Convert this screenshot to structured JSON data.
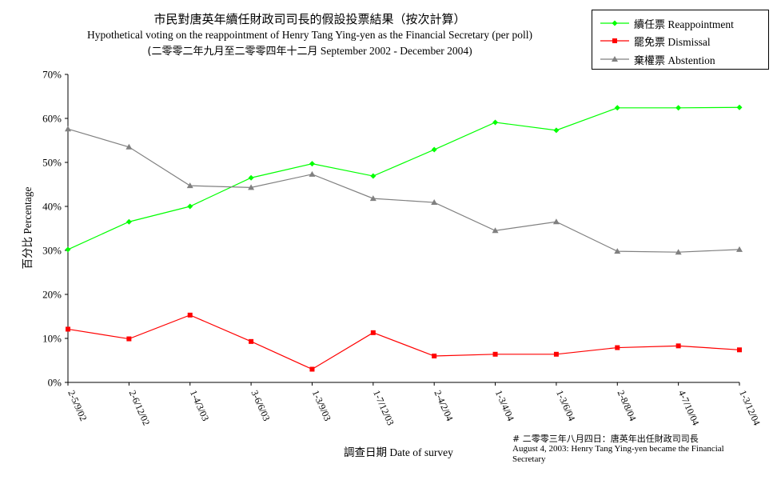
{
  "header": {
    "title_zh": "市民對唐英年續任財政司司長的假設投票結果（按次計算）",
    "title_en": "Hypothetical voting on the reappointment of Henry Tang Ying-yen as the Financial Secretary (per poll)",
    "period_zh": "(二零零二年九月至二零零四年十二月",
    "period_en": "September 2002 - December 2004)"
  },
  "note": {
    "line_zh": "# 二零零三年八月四日：唐英年出任財政司司長",
    "line_en": "August 4, 2003: Henry Tang Ying-yen became the Financial Secretary"
  },
  "chart_data": {
    "type": "line",
    "categories": [
      "2-5/9/02",
      "2-6/12/02",
      "1-4/3/03",
      "3-6/6/03",
      "1-3/9/03",
      "1-7/12/03",
      "2-4/2/04",
      "1-3/4/04",
      "1-3/6/04",
      "2-8/8/04",
      "4-7/10/04",
      "1-3/12/04"
    ],
    "series": [
      {
        "name": "續任票 Reappointment",
        "name_zh": "續任票",
        "name_en": "Reappointment",
        "color": "#00ff00",
        "marker": "diamond",
        "values": [
          30.2,
          36.5,
          40.0,
          46.5,
          49.7,
          46.9,
          52.9,
          59.1,
          57.3,
          62.4,
          62.4,
          62.5
        ]
      },
      {
        "name": "罷免票 Dismissal",
        "name_zh": "罷免票",
        "name_en": "Dismissal",
        "color": "#ff0000",
        "marker": "square",
        "values": [
          12.1,
          9.9,
          15.3,
          9.3,
          3.0,
          11.3,
          6.0,
          6.4,
          6.4,
          7.9,
          8.3,
          7.4
        ]
      },
      {
        "name": "棄權票 Abstention",
        "name_zh": "棄權票",
        "name_en": "Abstention",
        "color": "#808080",
        "marker": "triangle",
        "values": [
          57.6,
          53.5,
          44.7,
          44.3,
          47.3,
          41.8,
          40.9,
          34.5,
          36.5,
          29.8,
          29.6,
          30.2
        ]
      }
    ],
    "xlabel": "調查日期 Date of survey",
    "ylabel": "百分比 Percentage",
    "ylim": [
      0,
      70
    ],
    "yticks": [
      "0%",
      "10%",
      "20%",
      "30%",
      "40%",
      "50%",
      "60%",
      "70%"
    ],
    "grid": false,
    "legend": "top-right"
  }
}
